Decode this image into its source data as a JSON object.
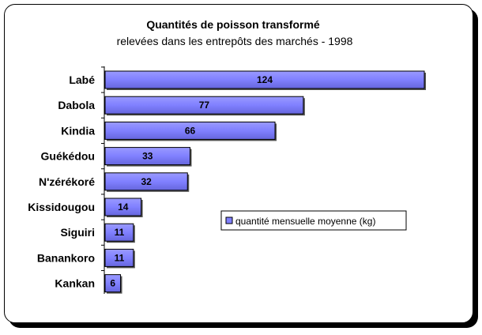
{
  "chart_data": {
    "type": "bar",
    "orientation": "horizontal",
    "title": "Quantités de poisson transformé",
    "subtitle": "relevées dans les entrepôts des marchés - 1998",
    "categories": [
      "Labé",
      "Dabola",
      "Kindia",
      "Guékédou",
      "N'zérékoré",
      "Kissidougou",
      "Siguiri",
      "Banankoro",
      "Kankan"
    ],
    "series": [
      {
        "name": "quantité mensuelle moyenne (kg)",
        "values": [
          124,
          77,
          66,
          33,
          32,
          14,
          11,
          11,
          6
        ],
        "color": "#8080ff"
      }
    ],
    "xlim": [
      0,
      124
    ],
    "grid": false,
    "legend_position": "right",
    "data_labels": true
  }
}
